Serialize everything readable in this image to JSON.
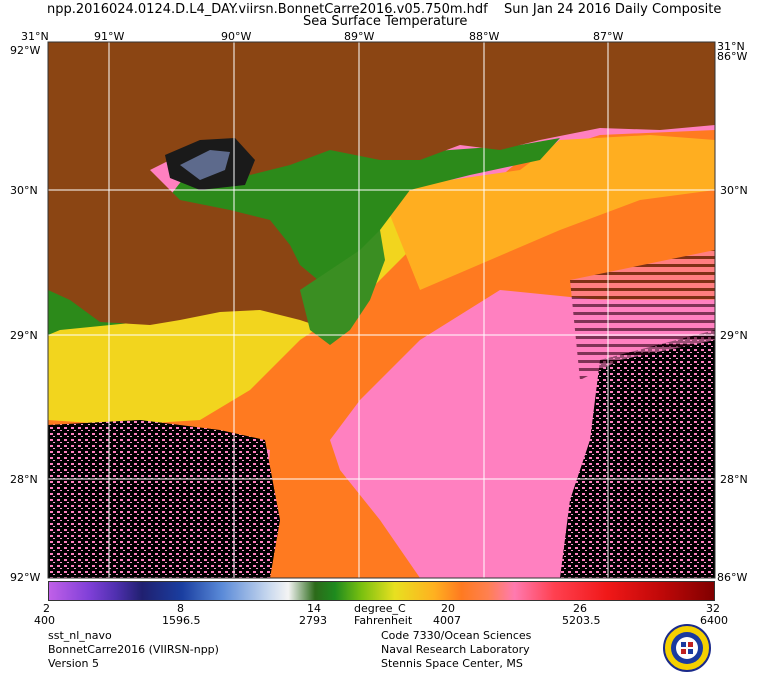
{
  "title": {
    "file": "npp.2016024.0124.D.L4_DAY.viirsn.BonnetCarre2016.v05.750m.hdf",
    "date": "Sun Jan 24 2016 Daily Composite",
    "product": "Sea Surface Temperature"
  },
  "axes": {
    "lon_labels": [
      "91°W",
      "90°W",
      "89°W",
      "88°W",
      "87°W"
    ],
    "lat_labels": [
      "30°N",
      "29°N",
      "28°N"
    ],
    "corner_top_left": "31°N",
    "corner_top_left_lon": "92°W",
    "corner_top_right": "31°N",
    "corner_top_right_lon": "86°W",
    "corner_bottom_left": "92°W",
    "corner_bottom_right": "86°W"
  },
  "colorbar": {
    "celsius_ticks": [
      "2",
      "8",
      "14",
      "20",
      "26",
      "32"
    ],
    "fahrenheit_ticks": [
      "400",
      "1596.5",
      "2793",
      "4007",
      "5203.5",
      "6400"
    ],
    "unit_c": "degree_C",
    "unit_f": "Fahrenheit"
  },
  "footer": {
    "left": [
      "sst_nl_navo",
      "BonnetCarre2016 (VIIRSN-npp)",
      "Version 5"
    ],
    "right": [
      "Code 7330/Ocean Sciences",
      "Naval Research Laboratory",
      "Stennis Space Center, MS"
    ]
  },
  "colors": {
    "land": "#8b4513",
    "warm_water": "#ff7a20",
    "hot_water": "#ff80c0",
    "cool_water": "#e6e020",
    "coastal_water": "#2c8a1a",
    "cloud_mask": "#000000"
  }
}
